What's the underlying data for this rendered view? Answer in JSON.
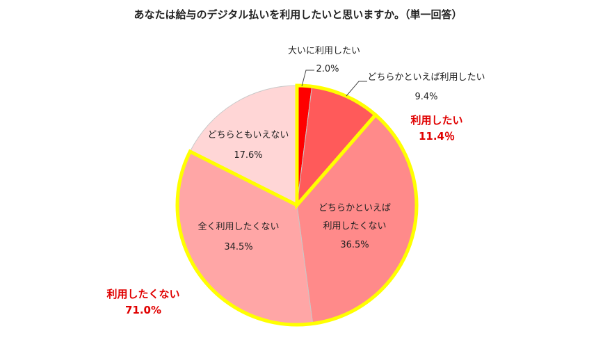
{
  "chart_data": {
    "type": "pie",
    "title": "あなたは給与のデジタル払いを利用したいと思いますか。（単一回答）",
    "slices": [
      {
        "label": "大いに利用したい",
        "value": 2.0,
        "value_label": "2.0%",
        "color": "#ff0000"
      },
      {
        "label": "どちらかといえば利用したい",
        "value": 9.4,
        "value_label": "9.4%",
        "color": "#ff5a5a"
      },
      {
        "label": "どちらかといえば利用したくない",
        "value": 36.5,
        "value_label": "36.5%",
        "color": "#ff8a8a"
      },
      {
        "label": "全く利用したくない",
        "value": 34.5,
        "value_label": "34.5%",
        "color": "#ffa6a6"
      },
      {
        "label": "どちらともいえない",
        "value": 17.6,
        "value_label": "17.6%",
        "color": "#ffd6d6"
      }
    ],
    "groups": [
      {
        "label": "利用したい",
        "value_label": "11.4％",
        "color": "#e00000",
        "highlight": "#ffff00"
      },
      {
        "label": "利用したくない",
        "value_label": "71.0%",
        "color": "#e00000",
        "highlight": "#ffff00"
      }
    ]
  }
}
